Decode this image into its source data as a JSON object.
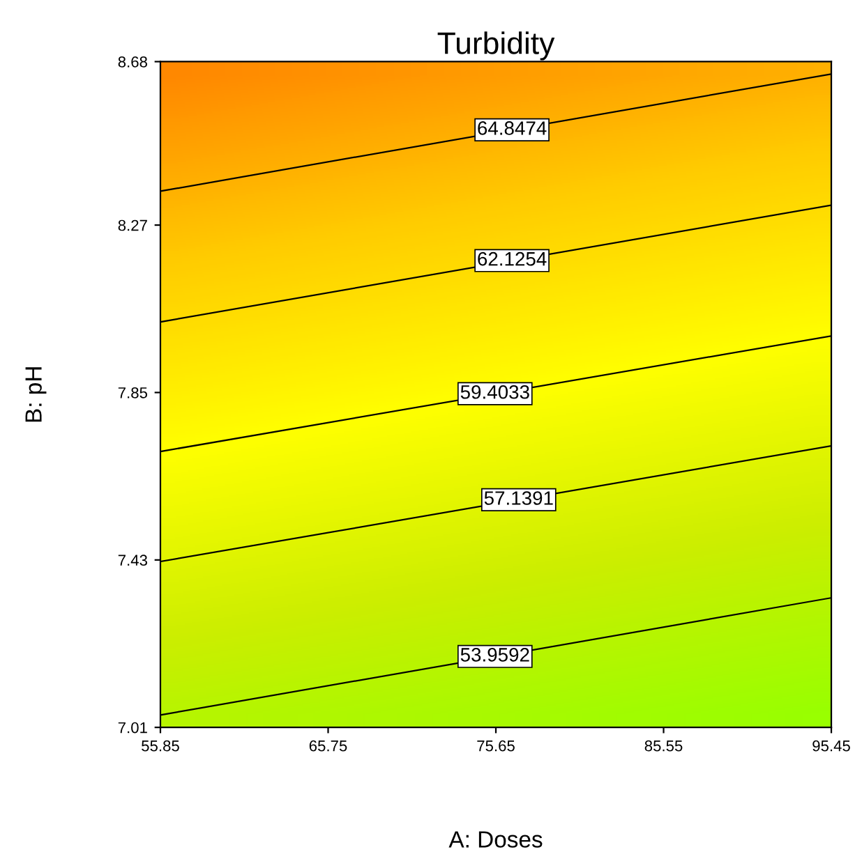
{
  "chart_data": {
    "type": "line",
    "title": "Turbidity",
    "xlabel": "A: Doses",
    "ylabel": "B: pH",
    "x": [
      55.85,
      95.45
    ],
    "series": [
      {
        "color": "#000000",
        "values": [
          8.355,
          8.649
        ]
      },
      {
        "color": "#000000",
        "values": [
          8.027,
          8.32
        ]
      },
      {
        "color": "#000000",
        "values": [
          7.702,
          7.992
        ]
      },
      {
        "color": "#000000",
        "values": [
          7.426,
          7.716
        ]
      },
      {
        "color": "#000000",
        "values": [
          7.041,
          7.335
        ]
      }
    ],
    "annotations": [
      {
        "text": "64.8474",
        "x": 76.6,
        "y": 8.509
      },
      {
        "text": "62.1254",
        "x": 76.6,
        "y": 8.181
      },
      {
        "text": "59.4033",
        "x": 75.6,
        "y": 7.847
      },
      {
        "text": "57.1391",
        "x": 77.0,
        "y": 7.581
      },
      {
        "text": "53.9592",
        "x": 75.6,
        "y": 7.188
      }
    ],
    "xlim": [
      55.85,
      95.45
    ],
    "xticks": [
      55.85,
      65.75,
      75.65,
      85.55,
      95.45
    ],
    "ylim": [
      7.01,
      8.68
    ],
    "yticks": [
      7.01,
      7.43,
      7.85,
      8.27,
      8.68
    ],
    "grid": false,
    "legend": false,
    "line_style": "solid"
  }
}
